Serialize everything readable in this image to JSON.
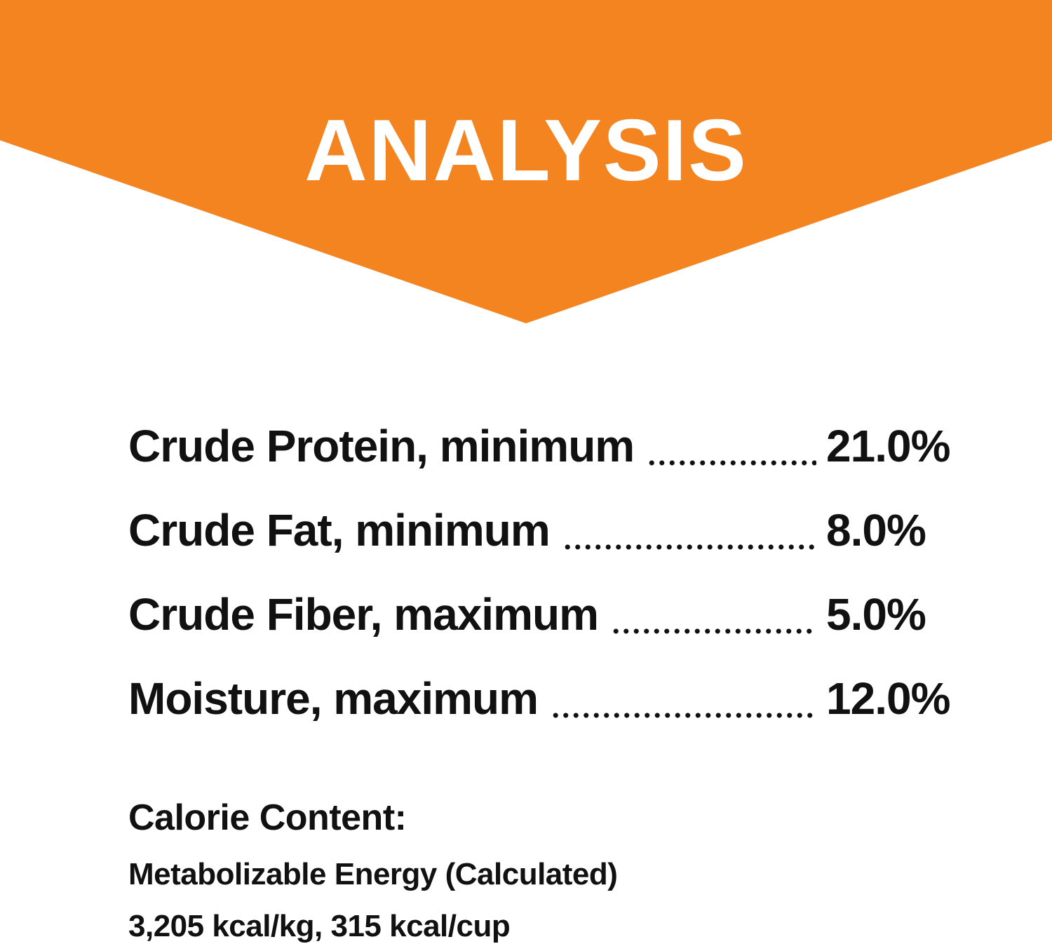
{
  "header": {
    "title": "ANALYSIS"
  },
  "table": {
    "rows": [
      {
        "label": "Crude Protein, minimum",
        "value": "21.0%"
      },
      {
        "label": "Crude Fat, minimum",
        "value": "8.0%"
      },
      {
        "label": "Crude Fiber, maximum",
        "value": "5.0%"
      },
      {
        "label": "Moisture, maximum",
        "value": "12.0%"
      }
    ]
  },
  "calorie": {
    "heading": "Calorie Content:",
    "method": "Metabolizable Energy (Calculated)",
    "values": "3,205 kcal/kg, 315 kcal/cup"
  }
}
